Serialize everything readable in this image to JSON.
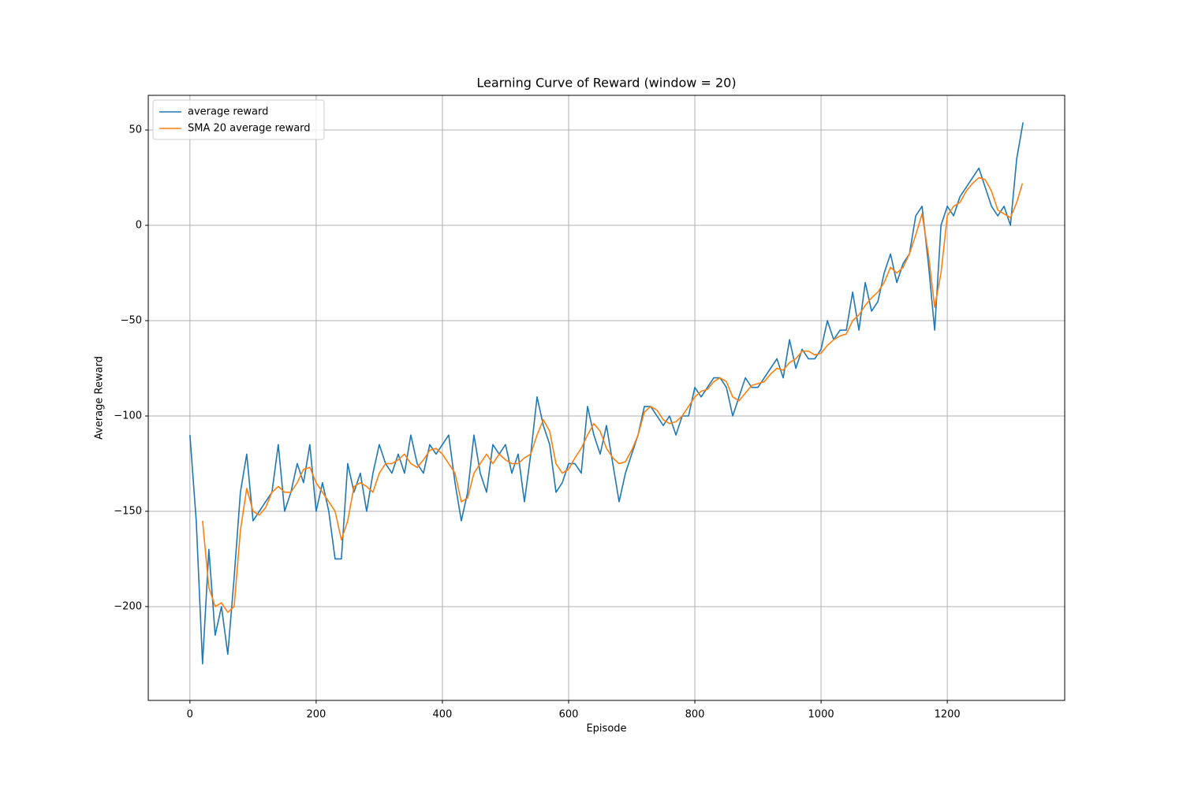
{
  "chart_data": {
    "type": "line",
    "title": "Learning Curve of Reward (window = 20)",
    "xlabel": "Episode",
    "ylabel": "Average Reward",
    "xlim": [
      -66,
      1386
    ],
    "ylim": [
      -249.2,
      68.2
    ],
    "xticks": [
      0,
      200,
      400,
      600,
      800,
      1000,
      1200
    ],
    "yticks": [
      {
        "value": -200,
        "label": "−200"
      },
      {
        "value": -150,
        "label": "−150"
      },
      {
        "value": -100,
        "label": "−100"
      },
      {
        "value": -50,
        "label": "−50"
      },
      0,
      50
    ],
    "grid": true,
    "legend": "upper left",
    "series": [
      {
        "name": "average reward",
        "color": "#1f77b4",
        "x": [
          0,
          10,
          20,
          30,
          40,
          50,
          60,
          70,
          80,
          90,
          100,
          110,
          120,
          130,
          140,
          150,
          160,
          170,
          180,
          190,
          200,
          210,
          220,
          230,
          240,
          250,
          260,
          270,
          280,
          290,
          300,
          310,
          320,
          330,
          340,
          350,
          360,
          370,
          380,
          390,
          400,
          410,
          420,
          430,
          440,
          450,
          460,
          470,
          480,
          490,
          500,
          510,
          520,
          530,
          540,
          550,
          560,
          570,
          580,
          590,
          600,
          610,
          620,
          630,
          640,
          650,
          660,
          670,
          680,
          690,
          700,
          710,
          720,
          730,
          740,
          750,
          760,
          770,
          780,
          790,
          800,
          810,
          820,
          830,
          840,
          850,
          860,
          870,
          880,
          890,
          900,
          910,
          920,
          930,
          940,
          950,
          960,
          970,
          980,
          990,
          1000,
          1010,
          1020,
          1030,
          1040,
          1050,
          1060,
          1070,
          1080,
          1090,
          1100,
          1110,
          1120,
          1130,
          1140,
          1150,
          1160,
          1170,
          1180,
          1190,
          1200,
          1210,
          1220,
          1230,
          1240,
          1250,
          1260,
          1270,
          1280,
          1290,
          1300,
          1310,
          1320
        ],
        "values": [
          -110,
          -155,
          -230,
          -170,
          -215,
          -200,
          -225,
          -185,
          -140,
          -120,
          -155,
          -150,
          -145,
          -140,
          -115,
          -150,
          -140,
          -125,
          -135,
          -115,
          -150,
          -135,
          -150,
          -175,
          -175,
          -125,
          -140,
          -130,
          -150,
          -130,
          -115,
          -125,
          -130,
          -120,
          -130,
          -110,
          -125,
          -130,
          -115,
          -120,
          -115,
          -110,
          -135,
          -155,
          -140,
          -110,
          -130,
          -140,
          -115,
          -120,
          -115,
          -130,
          -120,
          -145,
          -120,
          -90,
          -105,
          -115,
          -140,
          -135,
          -125,
          -125,
          -130,
          -95,
          -110,
          -120,
          -105,
          -125,
          -145,
          -130,
          -120,
          -110,
          -95,
          -95,
          -100,
          -105,
          -100,
          -110,
          -100,
          -100,
          -85,
          -90,
          -85,
          -80,
          -80,
          -85,
          -100,
          -90,
          -80,
          -85,
          -85,
          -80,
          -75,
          -70,
          -80,
          -60,
          -75,
          -65,
          -70,
          -70,
          -65,
          -50,
          -60,
          -55,
          -55,
          -35,
          -55,
          -30,
          -45,
          -40,
          -25,
          -15,
          -30,
          -20,
          -15,
          5,
          10,
          -20,
          -55,
          0,
          10,
          5,
          15,
          20,
          25,
          30,
          20,
          10,
          5,
          10,
          0,
          35,
          54
        ]
      },
      {
        "name": "SMA 20 average reward",
        "color": "#ff7f0e",
        "x": [
          20,
          30,
          40,
          50,
          60,
          70,
          80,
          90,
          100,
          110,
          120,
          130,
          140,
          150,
          160,
          170,
          180,
          190,
          200,
          210,
          220,
          230,
          240,
          250,
          260,
          270,
          280,
          290,
          300,
          310,
          320,
          330,
          340,
          350,
          360,
          370,
          380,
          390,
          400,
          410,
          420,
          430,
          440,
          450,
          460,
          470,
          480,
          490,
          500,
          510,
          520,
          530,
          540,
          550,
          560,
          570,
          580,
          590,
          600,
          610,
          620,
          630,
          640,
          650,
          660,
          670,
          680,
          690,
          700,
          710,
          720,
          730,
          740,
          750,
          760,
          770,
          780,
          790,
          800,
          810,
          820,
          830,
          840,
          850,
          860,
          870,
          880,
          890,
          900,
          910,
          920,
          930,
          940,
          950,
          960,
          970,
          980,
          990,
          1000,
          1010,
          1020,
          1030,
          1040,
          1050,
          1060,
          1070,
          1080,
          1090,
          1100,
          1110,
          1120,
          1130,
          1140,
          1150,
          1160,
          1170,
          1180,
          1190,
          1200,
          1210,
          1220,
          1230,
          1240,
          1250,
          1260,
          1270,
          1280,
          1290,
          1300,
          1310,
          1319
        ],
        "values": [
          -155,
          -190,
          -200,
          -198,
          -203,
          -200,
          -160,
          -138,
          -150,
          -152,
          -148,
          -140,
          -137,
          -140,
          -140,
          -135,
          -128,
          -127,
          -135,
          -140,
          -145,
          -150,
          -165,
          -155,
          -137,
          -135,
          -137,
          -140,
          -130,
          -125,
          -125,
          -123,
          -120,
          -125,
          -127,
          -123,
          -118,
          -117,
          -120,
          -125,
          -130,
          -145,
          -143,
          -130,
          -125,
          -120,
          -125,
          -120,
          -123,
          -125,
          -125,
          -122,
          -120,
          -110,
          -102,
          -108,
          -125,
          -130,
          -128,
          -122,
          -117,
          -110,
          -104,
          -108,
          -117,
          -122,
          -125,
          -124,
          -118,
          -110,
          -98,
          -95,
          -97,
          -102,
          -104,
          -103,
          -100,
          -95,
          -90,
          -87,
          -86,
          -82,
          -80,
          -82,
          -90,
          -92,
          -88,
          -84,
          -83,
          -82,
          -78,
          -75,
          -76,
          -72,
          -70,
          -66,
          -66,
          -68,
          -67,
          -63,
          -60,
          -58,
          -57,
          -50,
          -47,
          -42,
          -38,
          -35,
          -30,
          -22,
          -25,
          -22,
          -15,
          -5,
          6,
          -15,
          -43,
          -25,
          5,
          10,
          12,
          18,
          22,
          25,
          24,
          18,
          8,
          6,
          4,
          12,
          22
        ]
      }
    ]
  }
}
